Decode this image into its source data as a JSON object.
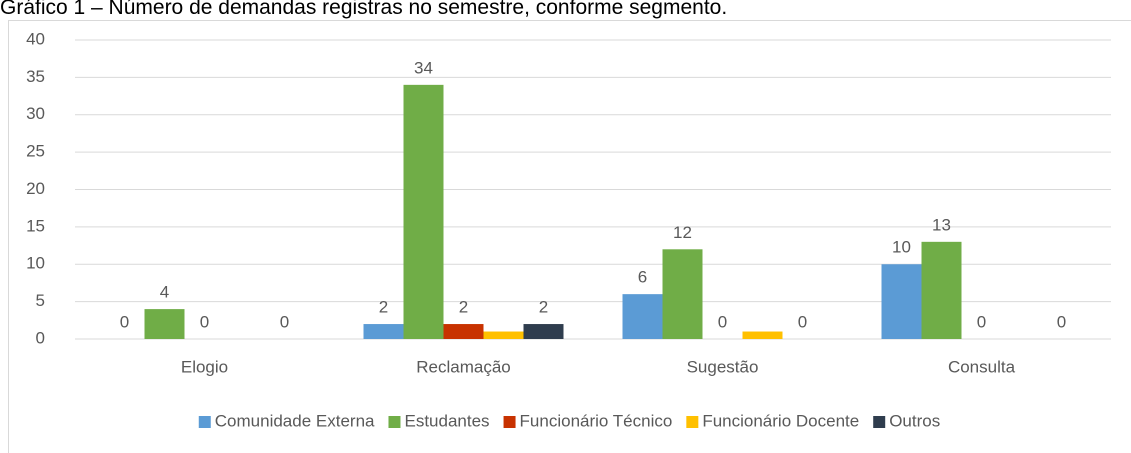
{
  "chart_data": {
    "type": "bar",
    "title": "Gráfico 1 – Número de demandas registras no semestre, conforme segmento.",
    "categories": [
      "Elogio",
      "Reclamação",
      "Sugestão",
      "Consulta"
    ],
    "series": [
      {
        "name": "Comunidade Externa",
        "color": "#5b9bd5",
        "values": [
          0,
          2,
          6,
          10
        ]
      },
      {
        "name": "Estudantes",
        "color": "#70ad47",
        "values": [
          4,
          34,
          12,
          13
        ]
      },
      {
        "name": "Funcionário Técnico",
        "color": "#c83200",
        "values": [
          0,
          2,
          0,
          0
        ]
      },
      {
        "name": "Funcionário Docente",
        "color": "#ffc000",
        "values": [
          0,
          1,
          1,
          0
        ],
        "data_labels": false
      },
      {
        "name": "Outros",
        "color": "#2f3d4e",
        "values": [
          0,
          2,
          0,
          0
        ]
      }
    ],
    "ylim": [
      0,
      40
    ],
    "yticks": [
      0,
      5,
      10,
      15,
      20,
      25,
      30,
      35,
      40
    ],
    "grid": true,
    "legend": "bottom"
  }
}
